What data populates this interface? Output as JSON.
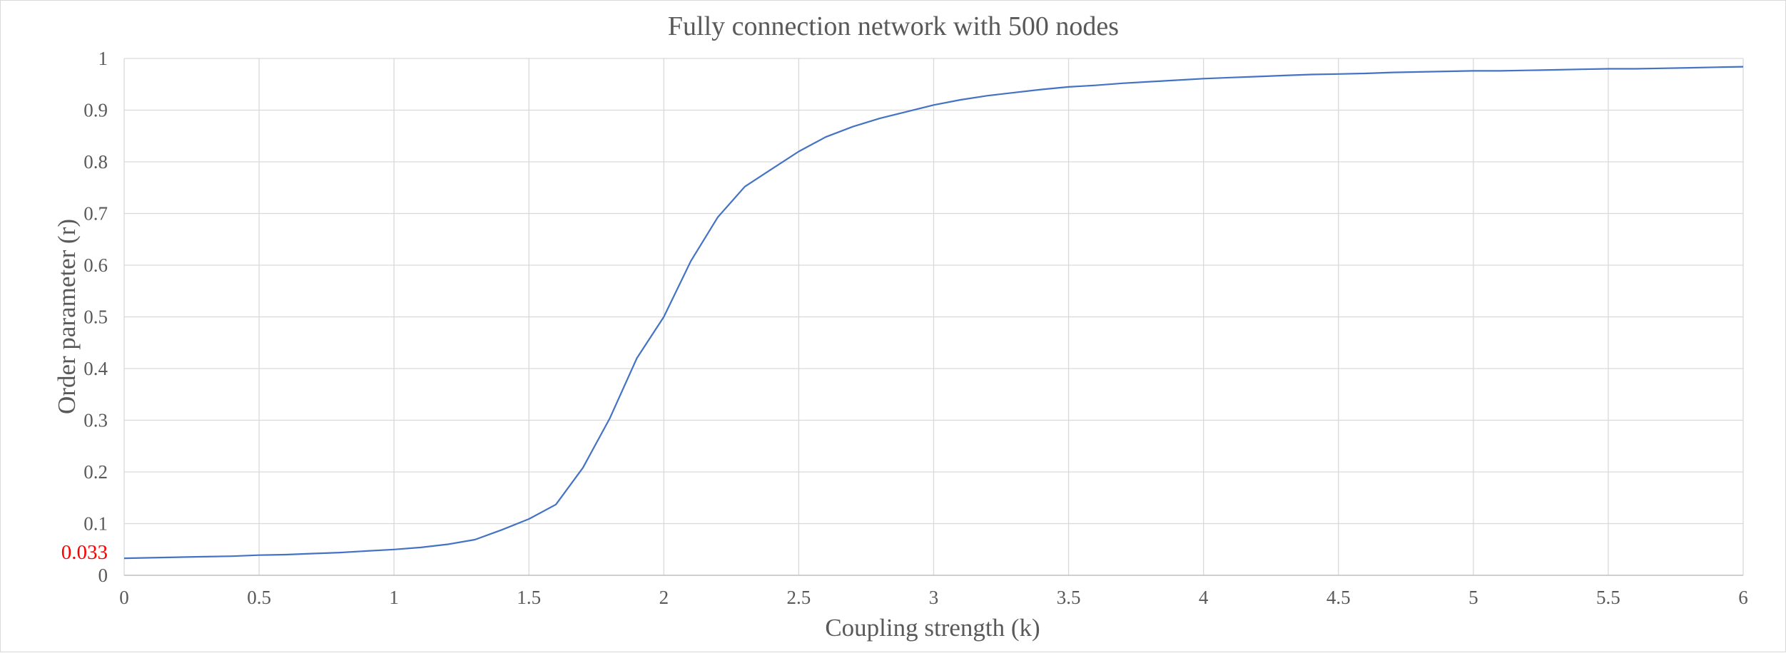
{
  "chart_data": {
    "type": "line",
    "title": "Fully connection network with 500 nodes",
    "xlabel": "Coupling strength (k)",
    "ylabel": "Order parameter (r)",
    "xlim": [
      0,
      6
    ],
    "ylim": [
      0,
      1
    ],
    "x_ticks": [
      "0",
      "0.5",
      "1",
      "1.5",
      "2",
      "2.5",
      "3",
      "3.5",
      "4",
      "4.5",
      "5",
      "5.5",
      "6"
    ],
    "y_ticks": [
      "0",
      "0.1",
      "0.2",
      "0.3",
      "0.4",
      "0.5",
      "0.6",
      "0.7",
      "0.8",
      "0.9",
      "1"
    ],
    "grid": true,
    "legend": "none",
    "annotation": {
      "text": "0.033",
      "y": 0.033,
      "color": "#ff0000"
    },
    "series": [
      {
        "color": "#4472c4",
        "x": [
          0,
          0.1,
          0.2,
          0.3,
          0.4,
          0.5,
          0.6,
          0.7,
          0.8,
          0.9,
          1.0,
          1.1,
          1.2,
          1.3,
          1.4,
          1.5,
          1.6,
          1.7,
          1.8,
          1.9,
          2.0,
          2.1,
          2.2,
          2.3,
          2.4,
          2.5,
          2.6,
          2.7,
          2.8,
          2.9,
          3.0,
          3.1,
          3.2,
          3.3,
          3.4,
          3.5,
          3.6,
          3.7,
          3.8,
          3.9,
          4.0,
          4.1,
          4.2,
          4.3,
          4.4,
          4.5,
          4.6,
          4.7,
          4.8,
          4.9,
          5.0,
          5.1,
          5.2,
          5.3,
          5.4,
          5.5,
          5.6,
          5.7,
          5.8,
          5.9,
          6.0
        ],
        "y": [
          0.033,
          0.034,
          0.035,
          0.036,
          0.037,
          0.039,
          0.04,
          0.042,
          0.044,
          0.047,
          0.05,
          0.054,
          0.06,
          0.069,
          0.088,
          0.109,
          0.137,
          0.208,
          0.304,
          0.42,
          0.5,
          0.608,
          0.693,
          0.752,
          0.786,
          0.82,
          0.848,
          0.868,
          0.884,
          0.897,
          0.91,
          0.92,
          0.928,
          0.934,
          0.94,
          0.945,
          0.948,
          0.952,
          0.955,
          0.958,
          0.961,
          0.963,
          0.965,
          0.967,
          0.969,
          0.97,
          0.971,
          0.973,
          0.974,
          0.975,
          0.976,
          0.976,
          0.977,
          0.978,
          0.979,
          0.98,
          0.98,
          0.981,
          0.982,
          0.983,
          0.984
        ]
      }
    ]
  }
}
